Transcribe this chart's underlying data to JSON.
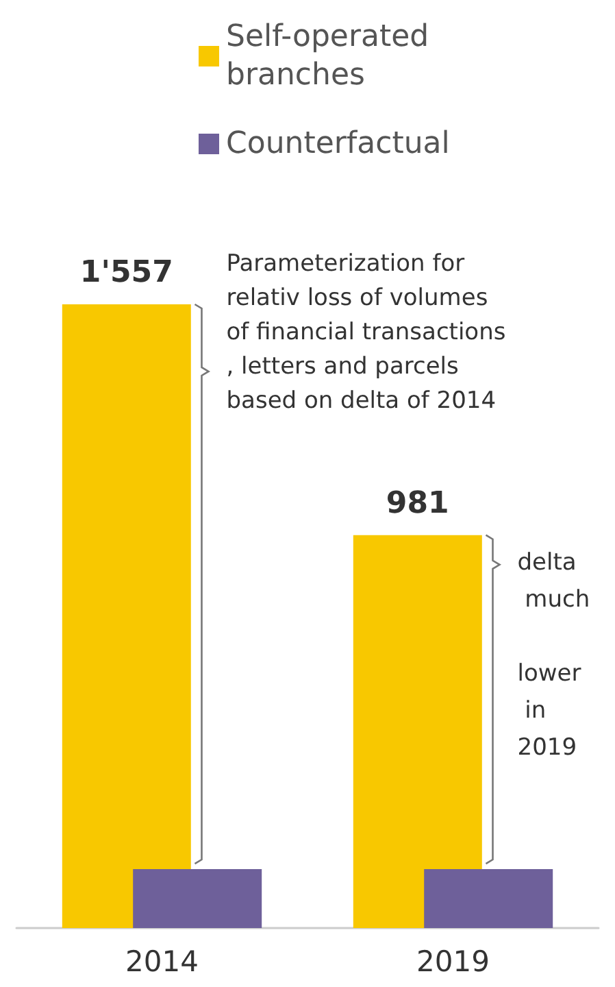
{
  "chart_data": {
    "type": "bar",
    "categories": [
      "2014",
      "2019"
    ],
    "series": [
      {
        "name": "Self-operated branches",
        "color": "#f8c800",
        "values": [
          1557,
          981
        ],
        "value_labels": [
          "1'557",
          "981"
        ]
      },
      {
        "name": "Counterfactual",
        "color": "#6e609a",
        "values": [
          147,
          147
        ]
      }
    ],
    "annotations": [
      "Parameterization for relativ loss of volumes of financial transactions, letters and parcels based on delta of 2014",
      "delta much lower in 2019"
    ],
    "legend": "top",
    "grid": false
  }
}
